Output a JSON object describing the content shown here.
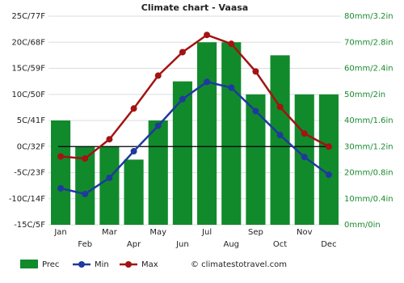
{
  "chart_data": {
    "type": "combo",
    "title": "Climate chart - Vaasa",
    "categories": [
      "Jan",
      "Feb",
      "Mar",
      "Apr",
      "May",
      "Jun",
      "Jul",
      "Aug",
      "Sep",
      "Oct",
      "Nov",
      "Dec"
    ],
    "series": [
      {
        "name": "Prec",
        "type": "bar",
        "axis": "y2",
        "color": "#118a2c",
        "values": [
          40,
          30,
          30,
          25,
          40,
          55,
          70,
          70,
          50,
          65,
          50,
          50
        ]
      },
      {
        "name": "Min",
        "type": "line",
        "color": "#1f3a9e",
        "values": [
          -8,
          -9.1,
          -6,
          -0.9,
          4,
          9.1,
          12.4,
          11.3,
          6.8,
          2.2,
          -2,
          -5.4
        ]
      },
      {
        "name": "Max",
        "type": "line",
        "color": "#a31313",
        "values": [
          -1.9,
          -2.3,
          1.4,
          7.3,
          13.6,
          18.1,
          21.4,
          19.7,
          14.4,
          7.6,
          2.5,
          0
        ]
      }
    ],
    "ylim": [
      -15,
      25
    ],
    "yticks": [
      {
        "value": -15,
        "label": "-15C/5F"
      },
      {
        "value": -10,
        "label": "-10C/14F"
      },
      {
        "value": -5,
        "label": "-5C/23F"
      },
      {
        "value": 0,
        "label": "0C/32F"
      },
      {
        "value": 5,
        "label": "5C/41F"
      },
      {
        "value": 10,
        "label": "10C/50F"
      },
      {
        "value": 15,
        "label": "15C/59F"
      },
      {
        "value": 20,
        "label": "20C/68F"
      },
      {
        "value": 25,
        "label": "25C/77F"
      }
    ],
    "y2lim": [
      0,
      80
    ],
    "y2ticks": [
      {
        "value": 0,
        "label": "0mm/0in"
      },
      {
        "value": 10,
        "label": "10mm/0.4in"
      },
      {
        "value": 20,
        "label": "20mm/0.8in"
      },
      {
        "value": 30,
        "label": "30mm/1.2in"
      },
      {
        "value": 40,
        "label": "40mm/1.6in"
      },
      {
        "value": 50,
        "label": "50mm/2in"
      },
      {
        "value": 60,
        "label": "60mm/2.4in"
      },
      {
        "value": 70,
        "label": "70mm/2.8in"
      },
      {
        "value": 80,
        "label": "80mm/3.2in"
      }
    ],
    "grid": true,
    "legend": "bottom",
    "credit": "© climatestotravel.com"
  }
}
